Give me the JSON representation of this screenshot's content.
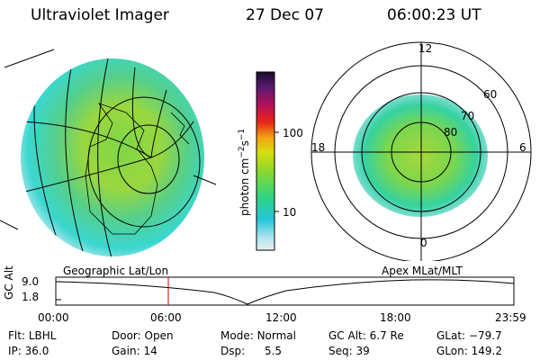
{
  "header": {
    "instrument": "Ultraviolet Imager",
    "date": "27 Dec 07",
    "time": "06:00:23 UT"
  },
  "colorbar": {
    "label_main": "photon cm",
    "label_exp1": "−2",
    "label_mid": "s",
    "label_exp2": "−1",
    "ticks": [
      "100",
      "10"
    ]
  },
  "polar_plot": {
    "mlt_labels": [
      "12",
      "18",
      "6",
      "0"
    ],
    "mlat_labels": [
      "60",
      "70",
      "80"
    ]
  },
  "timeline": {
    "left_caption": "Geographic Lat/Lon",
    "right_caption": "Apex MLat/MLT",
    "axis_label": "GC Alt",
    "ytick_top": "9.0",
    "ytick_bottom": "1.8",
    "time_ticks": [
      "00:00",
      "06:00",
      "12:00",
      "18:00",
      "23:59"
    ],
    "marker_color": "#cc0000"
  },
  "status": {
    "row1": [
      {
        "key": "Flt:",
        "val": "LBHL"
      },
      {
        "key": "Door:",
        "val": "Open"
      },
      {
        "key": "Mode:",
        "val": "Normal"
      },
      {
        "key": "GC Alt:",
        "val": "6.7 Re"
      },
      {
        "key": "GLat:",
        "val": "−79.7"
      }
    ],
    "row2": [
      {
        "key": "IP:",
        "val": "36.0"
      },
      {
        "key": "Gain:",
        "val": "14"
      },
      {
        "key": "Dsp:",
        "val": "5.5"
      },
      {
        "key": "Seq:",
        "val": "39"
      },
      {
        "key": "GLon:",
        "val": "149.2"
      }
    ]
  }
}
